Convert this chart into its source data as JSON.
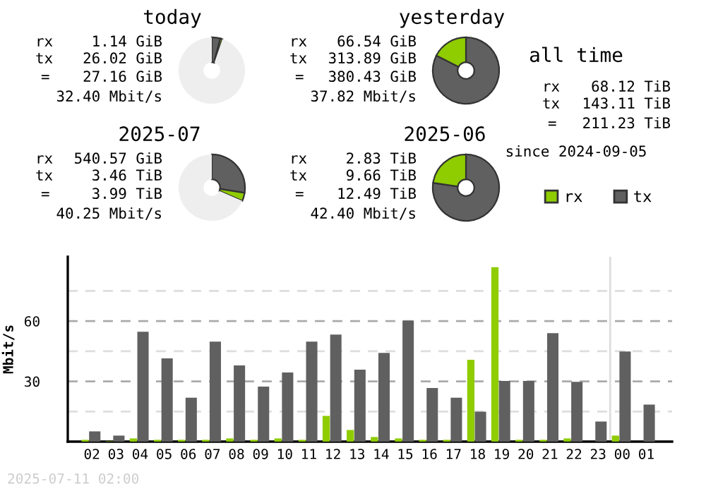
{
  "chart_data": [
    {
      "type": "donut",
      "title": "today",
      "categories": [
        null,
        null,
        null
      ],
      "values": [
        4.2,
        1.0,
        94.8
      ],
      "colors": [
        "#606060",
        "#8fcc00",
        "#eeeeee"
      ],
      "annotations": [
        "rx",
        "1.14 GiB",
        "tx",
        "26.02 GiB",
        "=",
        "27.16 GiB",
        "32.40 Mbit/s"
      ]
    },
    {
      "type": "donut",
      "title": "yesterday",
      "categories": [
        null,
        null,
        null
      ],
      "values": [
        82.5,
        17.5,
        0
      ],
      "colors": [
        "#606060",
        "#8fcc00",
        "#eeeeee"
      ],
      "annotations": [
        "rx",
        "66.54 GiB",
        "tx",
        "313.89 GiB",
        "=",
        "380.43 GiB",
        "37.82 Mbit/s"
      ]
    },
    {
      "type": "other",
      "title": "all time",
      "annotations": [
        "rx",
        "68.12 TiB",
        "tx",
        "143.11 TiB",
        "=",
        "211.23 TiB",
        "since 2024-09-05"
      ]
    },
    {
      "type": "donut",
      "title": "2025-07",
      "categories": [
        null,
        null,
        null
      ],
      "values": [
        27.5,
        4.0,
        68.5
      ],
      "colors": [
        "#606060",
        "#8fcc00",
        "#eeeeee"
      ],
      "annotations": [
        "rx",
        "540.57 GiB",
        "tx",
        "3.46 TiB",
        "=",
        "3.99 TiB",
        "40.25 Mbit/s"
      ]
    },
    {
      "type": "donut",
      "title": "2025-06",
      "categories": [
        null,
        null,
        null
      ],
      "values": [
        77.3,
        22.7,
        0
      ],
      "colors": [
        "#606060",
        "#8fcc00",
        "#eeeeee"
      ],
      "annotations": [
        "rx",
        "2.83 TiB",
        "tx",
        "9.66 TiB",
        "=",
        "12.49 TiB",
        "42.40 Mbit/s"
      ]
    },
    {
      "type": "bar",
      "ylabel": "Mbit/s",
      "categories": [
        "02",
        "03",
        "04",
        "05",
        "06",
        "07",
        "08",
        "09",
        "10",
        "11",
        "12",
        "13",
        "14",
        "15",
        "16",
        "17",
        "18",
        "19",
        "20",
        "21",
        "22",
        "23",
        "00",
        "01"
      ],
      "series": [
        {
          "name": "rx",
          "color": "#8fcc00",
          "values": [
            0.9,
            0.2,
            1.6,
            0.9,
            0.9,
            0.9,
            1.6,
            0.9,
            1.6,
            0.9,
            12.8,
            5.8,
            2.3,
            1.6,
            0.9,
            0.9,
            40.7,
            86.8,
            0.9,
            0.9,
            1.6,
            0,
            3.0,
            0
          ]
        },
        {
          "name": "tx",
          "color": "#606060",
          "values": [
            5.1,
            3.0,
            54.7,
            41.4,
            21.9,
            49.8,
            37.9,
            27.4,
            34.4,
            49.8,
            53.3,
            35.8,
            44.2,
            60.2,
            26.7,
            21.9,
            14.9,
            30.2,
            30.2,
            54.0,
            29.8,
            10.0,
            44.9,
            18.4
          ]
        }
      ],
      "ylim": [
        0,
        92
      ],
      "yticks": [
        {
          "value": 15,
          "label": null
        },
        30,
        {
          "value": 45,
          "label": null
        },
        60,
        {
          "value": 75,
          "label": null
        }
      ],
      "grid": "y",
      "legend": "top right",
      "ref_lines": [
        {
          "axis": "x",
          "value": "00",
          "color": "#dddddd"
        }
      ],
      "annotations": [
        "2025-07-11 02:00"
      ]
    }
  ]
}
